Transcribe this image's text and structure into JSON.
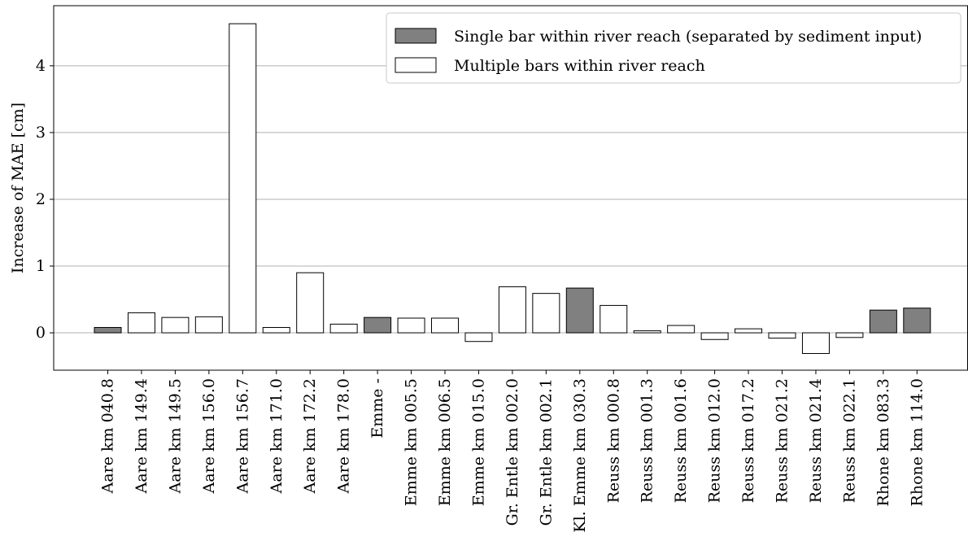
{
  "chart_data": {
    "type": "bar",
    "title": "",
    "xlabel": "",
    "ylabel": "Increase of MAE [cm]",
    "ylim": [
      -0.56,
      4.9
    ],
    "yticks": [
      0,
      1,
      2,
      3,
      4
    ],
    "grid": "horizontal",
    "legend_position": "top-right",
    "colors": {
      "single": "#808080",
      "multiple": "#ffffff",
      "edge": "#000000",
      "grid": "#b0b0b0"
    },
    "legend": [
      {
        "key": "single",
        "label": "Single bar within river reach (separated by sediment input)"
      },
      {
        "key": "multiple",
        "label": "Multiple bars within river reach"
      }
    ],
    "categories": [
      "Aare km 040.8",
      "Aare km 149.4",
      "Aare km 149.5",
      "Aare km 156.0",
      "Aare km 156.7",
      "Aare km 171.0",
      "Aare km 172.2",
      "Aare km 178.0",
      "Emme -",
      "Emme km 005.5",
      "Emme km 006.5",
      "Emme km 015.0",
      "Gr. Entle km 002.0",
      "Gr. Entle km 002.1",
      "Kl. Emme km 030.3",
      "Reuss km 000.8",
      "Reuss km 001.3",
      "Reuss km 001.6",
      "Reuss km 012.0",
      "Reuss km 017.2",
      "Reuss km 021.2",
      "Reuss km 021.4",
      "Reuss km 022.1",
      "Rhone km 083.3",
      "Rhone km 114.0"
    ],
    "values": [
      0.08,
      0.3,
      0.23,
      0.24,
      4.63,
      0.08,
      0.9,
      0.13,
      0.23,
      0.22,
      0.22,
      -0.13,
      0.69,
      0.59,
      0.67,
      0.41,
      0.03,
      0.11,
      -0.1,
      0.06,
      -0.08,
      -0.31,
      -0.07,
      0.34,
      0.37
    ],
    "groups": [
      "single",
      "multiple",
      "multiple",
      "multiple",
      "multiple",
      "multiple",
      "multiple",
      "multiple",
      "single",
      "multiple",
      "multiple",
      "multiple",
      "multiple",
      "multiple",
      "single",
      "multiple",
      "multiple",
      "multiple",
      "multiple",
      "multiple",
      "multiple",
      "multiple",
      "multiple",
      "single",
      "single"
    ]
  }
}
